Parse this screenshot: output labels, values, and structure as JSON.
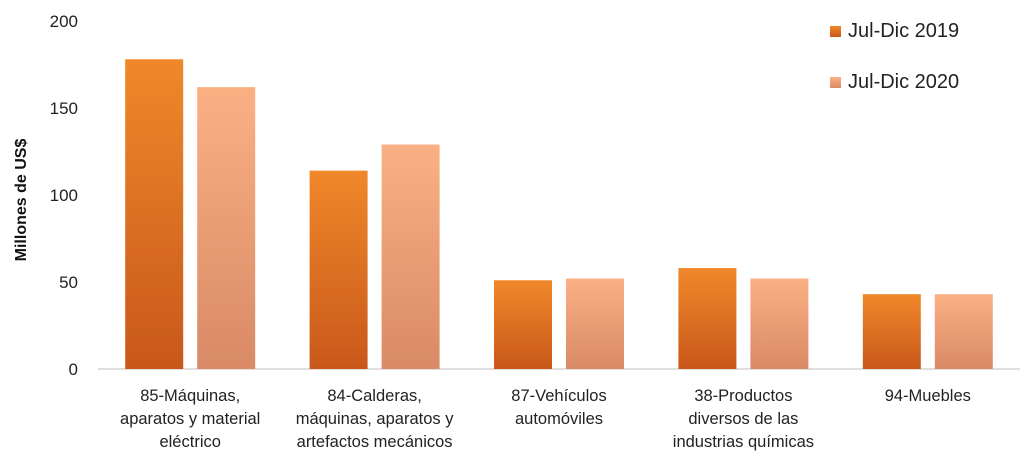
{
  "chart_data": {
    "type": "bar",
    "categories": [
      "85-Máquinas, aparatos y material eléctrico",
      "84-Calderas, máquinas, aparatos y artefactos mecánicos",
      "87-Vehículos automóviles",
      "38-Productos diversos de las industrias químicas",
      "94-Muebles"
    ],
    "category_lines": [
      [
        "85-Máquinas,",
        "aparatos y material",
        "eléctrico"
      ],
      [
        "84-Calderas,",
        "máquinas, aparatos y",
        "artefactos mecánicos"
      ],
      [
        "87-Vehículos",
        "automóviles"
      ],
      [
        "38-Productos",
        "diversos de las",
        "industrias químicas"
      ],
      [
        "94-Muebles"
      ]
    ],
    "series": [
      {
        "name": "Jul-Dic 2019",
        "values": [
          178,
          114,
          51,
          58,
          43
        ],
        "color_top": "#f0882a",
        "color_bottom": "#c8581a"
      },
      {
        "name": "Jul-Dic 2020",
        "values": [
          162,
          129,
          52,
          52,
          43
        ],
        "color_top": "#fbb084",
        "color_bottom": "#d98a66"
      }
    ],
    "title": "",
    "xlabel": "",
    "ylabel": "Millones de US$",
    "ylim": [
      0,
      200
    ],
    "yticks": [
      "0",
      "50",
      "100",
      "150",
      "200"
    ],
    "grid": false,
    "legend_position": "top-right"
  }
}
